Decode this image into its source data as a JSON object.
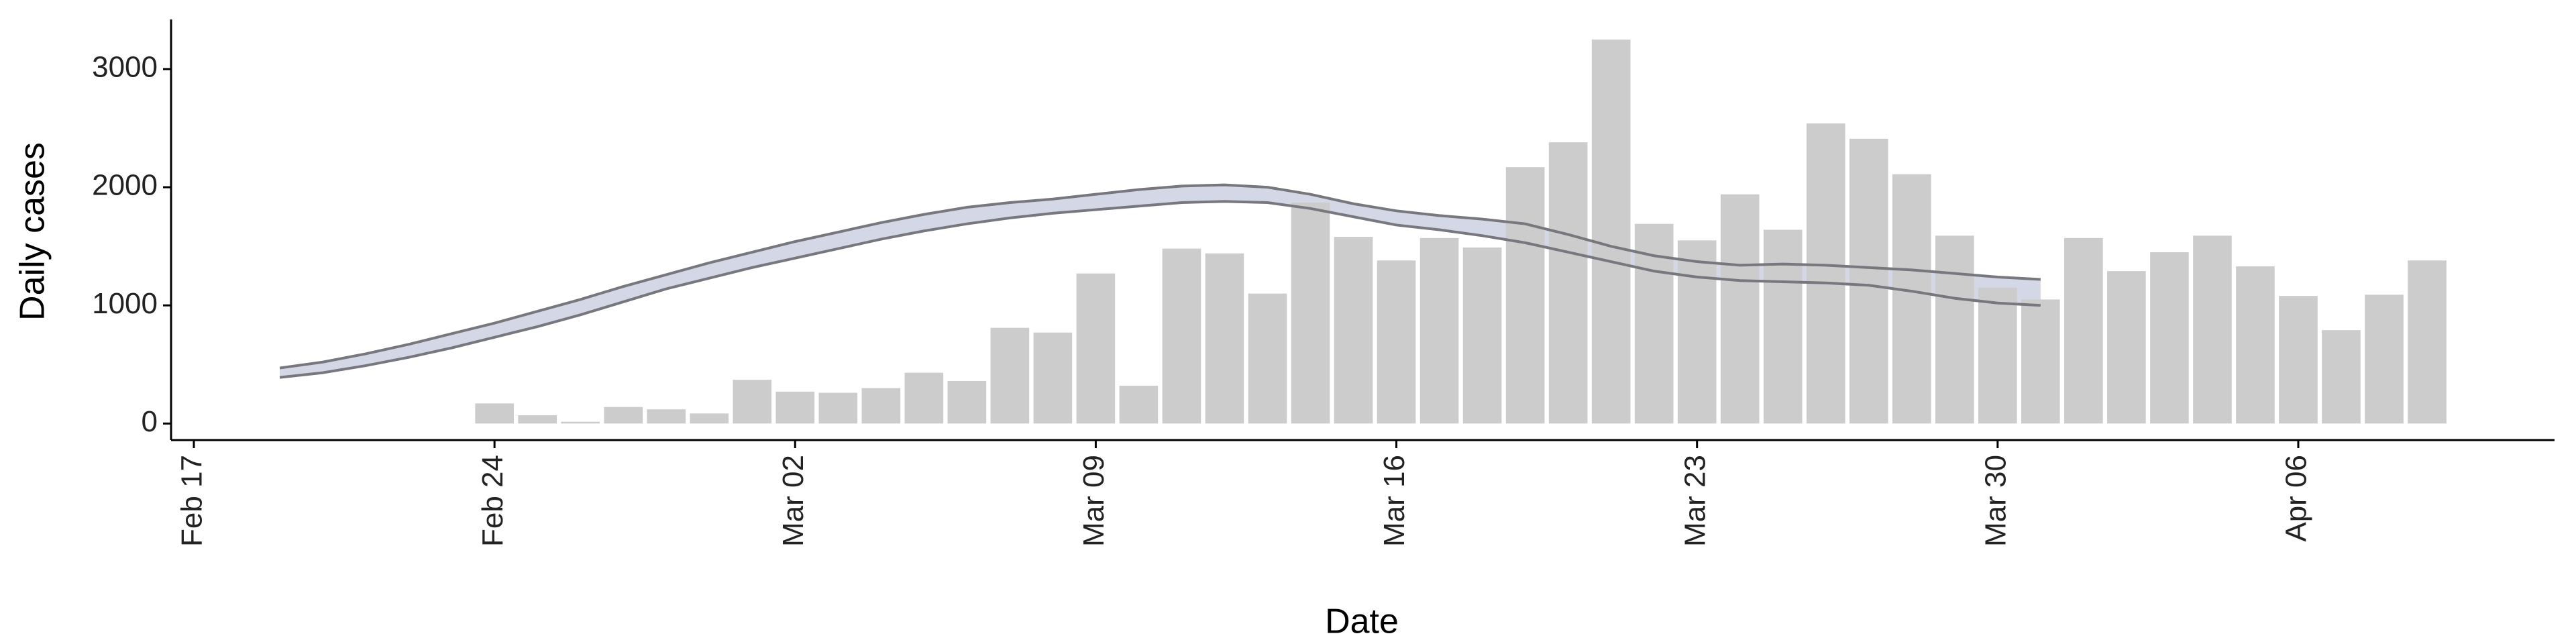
{
  "chart_data": {
    "type": "bar",
    "x_label": "Date",
    "y_label": "Daily cases",
    "categories": [
      "Feb 17",
      null,
      null,
      null,
      null,
      null,
      null,
      "Feb 24",
      null,
      null,
      null,
      null,
      null,
      null,
      "Mar 02",
      null,
      null,
      null,
      null,
      null,
      null,
      "Mar 09",
      null,
      null,
      null,
      null,
      null,
      null,
      "Mar 16",
      null,
      null,
      null,
      null,
      null,
      null,
      "Mar 23",
      null,
      null,
      null,
      null,
      null,
      null,
      "Mar 30",
      null,
      null,
      null,
      null,
      null,
      null,
      "Apr 06",
      null,
      null,
      null
    ],
    "series": [
      {
        "type": "bar",
        "color": "#cccccc",
        "values": [
          null,
          null,
          null,
          null,
          null,
          null,
          null,
          170,
          70,
          15,
          140,
          120,
          85,
          370,
          270,
          260,
          300,
          430,
          360,
          810,
          770,
          1270,
          320,
          1480,
          1440,
          1100,
          1870,
          1580,
          1380,
          1570,
          1490,
          2170,
          2380,
          3250,
          1690,
          1550,
          1940,
          1640,
          2540,
          2410,
          2110,
          1590,
          1150,
          1050,
          1570,
          1290,
          1450,
          1590,
          1330,
          1080,
          790,
          1090,
          1380
        ]
      },
      {
        "type": "line",
        "color": "#77777d",
        "values": [
          null,
          null,
          470,
          520,
          590,
          670,
          760,
          850,
          950,
          1050,
          1160,
          1260,
          1360,
          1450,
          1540,
          1620,
          1700,
          1770,
          1830,
          1870,
          1900,
          1940,
          1980,
          2010,
          2020,
          2000,
          1940,
          1860,
          1800,
          1760,
          1730,
          1690,
          1600,
          1500,
          1420,
          1370,
          1340,
          1350,
          1340,
          1320,
          1300,
          1270,
          1240,
          1220,
          null,
          null,
          null,
          null,
          null,
          null,
          null,
          null,
          null
        ]
      },
      {
        "type": "line",
        "color": "#77777d",
        "values": [
          null,
          null,
          390,
          430,
          490,
          560,
          640,
          730,
          820,
          920,
          1030,
          1140,
          1230,
          1320,
          1400,
          1480,
          1560,
          1630,
          1690,
          1740,
          1780,
          1810,
          1840,
          1870,
          1880,
          1870,
          1820,
          1750,
          1680,
          1640,
          1590,
          1530,
          1450,
          1370,
          1290,
          1240,
          1210,
          1200,
          1190,
          1170,
          1120,
          1060,
          1020,
          1000,
          null,
          null,
          null,
          null,
          null,
          null,
          null,
          null,
          null
        ]
      }
    ],
    "band_color": "#c9cde0",
    "ylim": [
      -140,
      3420
    ],
    "yticks": [
      0,
      1000,
      2000,
      3000
    ],
    "grid": false
  }
}
